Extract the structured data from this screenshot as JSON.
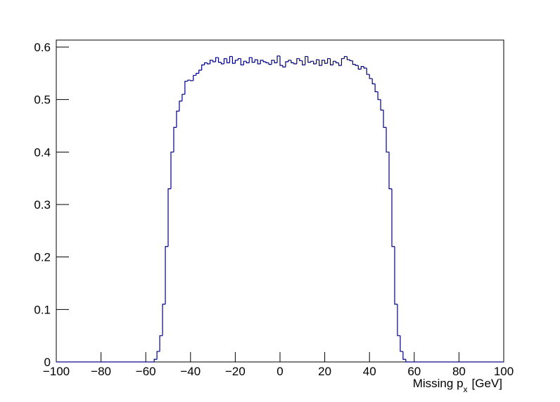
{
  "chart_data": {
    "type": "histogram",
    "x_label": "Missing p",
    "x_label_subscript": "x",
    "x_label_unit": "[GeV]",
    "color": "#000080",
    "xlim": [
      -100,
      100
    ],
    "ylim": [
      0,
      0.6134
    ],
    "xticks": [
      {
        "value": -100,
        "label": "−100"
      },
      {
        "value": -80,
        "label": "−80"
      },
      {
        "value": -60,
        "label": "−60"
      },
      {
        "value": -40,
        "label": "−40"
      },
      {
        "value": -20,
        "label": "−20"
      },
      0,
      20,
      40,
      60,
      80,
      100
    ],
    "yticks": [
      0,
      0.1,
      0.2,
      0.3,
      0.4,
      0.5,
      0.6
    ],
    "bins": [
      -100,
      -98.75,
      -97.5,
      -96.25,
      -95,
      -93.75,
      -92.5,
      -91.25,
      -90,
      -88.75,
      -87.5,
      -86.25,
      -85,
      -83.75,
      -82.5,
      -81.25,
      -80,
      -78.75,
      -77.5,
      -76.25,
      -75,
      -73.75,
      -72.5,
      -71.25,
      -70,
      -68.75,
      -67.5,
      -66.25,
      -65,
      -63.75,
      -62.5,
      -61.25,
      -60,
      -58.75,
      -57.5,
      -56.25,
      -55,
      -53.75,
      -52.5,
      -51.25,
      -50,
      -48.75,
      -47.5,
      -46.25,
      -45,
      -43.75,
      -42.5,
      -41.25,
      -40,
      -38.75,
      -37.5,
      -36.25,
      -35,
      -33.75,
      -32.5,
      -31.25,
      -30,
      -28.75,
      -27.5,
      -26.25,
      -25,
      -23.75,
      -22.5,
      -21.25,
      -20,
      -18.75,
      -17.5,
      -16.25,
      -15,
      -13.75,
      -12.5,
      -11.25,
      -10,
      -8.75,
      -7.5,
      -6.25,
      -5,
      -3.75,
      -2.5,
      -1.25,
      0,
      1.25,
      2.5,
      3.75,
      5,
      6.25,
      7.5,
      8.75,
      10,
      11.25,
      12.5,
      13.75,
      15,
      16.25,
      17.5,
      18.75,
      20,
      21.25,
      22.5,
      23.75,
      25,
      26.25,
      27.5,
      28.75,
      30,
      31.25,
      32.5,
      33.75,
      35,
      36.25,
      37.5,
      38.75,
      40,
      41.25,
      42.5,
      43.75,
      45,
      46.25,
      47.5,
      48.75,
      50,
      51.25,
      52.5,
      53.75,
      55,
      56.25,
      57.5,
      58.75,
      60,
      61.25,
      62.5,
      63.75,
      65,
      66.25,
      67.5,
      68.75,
      70,
      71.25,
      72.5,
      73.75,
      75,
      76.25,
      77.5,
      78.75,
      80,
      81.25,
      82.5,
      83.75,
      85,
      86.25,
      87.5,
      88.75,
      90,
      91.25,
      92.5,
      93.75,
      95,
      96.25,
      97.5,
      98.75,
      100
    ],
    "values": [
      0,
      0,
      0,
      0,
      0,
      0,
      0,
      0,
      0,
      0,
      0,
      0,
      0,
      0,
      0,
      0,
      0,
      0,
      0,
      0,
      0,
      0,
      0,
      0,
      0,
      0,
      0,
      0,
      0,
      0,
      0,
      0,
      0,
      0,
      0,
      0.005,
      0.02,
      0.05,
      0.11,
      0.22,
      0.33,
      0.4,
      0.447,
      0.478,
      0.497,
      0.51,
      0.535,
      0.537,
      0.536,
      0.546,
      0.55,
      0.556,
      0.566,
      0.57,
      0.568,
      0.575,
      0.572,
      0.58,
      0.571,
      0.568,
      0.578,
      0.57,
      0.582,
      0.569,
      0.575,
      0.578,
      0.566,
      0.573,
      0.57,
      0.58,
      0.571,
      0.576,
      0.568,
      0.575,
      0.572,
      0.57,
      0.567,
      0.575,
      0.57,
      0.583,
      0.565,
      0.562,
      0.572,
      0.575,
      0.57,
      0.568,
      0.578,
      0.574,
      0.566,
      0.582,
      0.571,
      0.573,
      0.568,
      0.576,
      0.565,
      0.575,
      0.569,
      0.578,
      0.566,
      0.573,
      0.57,
      0.565,
      0.578,
      0.582,
      0.576,
      0.574,
      0.567,
      0.565,
      0.558,
      0.563,
      0.56,
      0.548,
      0.54,
      0.53,
      0.515,
      0.5,
      0.48,
      0.447,
      0.4,
      0.33,
      0.22,
      0.11,
      0.05,
      0.02,
      0.005,
      0,
      0,
      0,
      0,
      0,
      0,
      0,
      0,
      0,
      0,
      0,
      0,
      0,
      0,
      0,
      0,
      0,
      0,
      0,
      0,
      0,
      0,
      0,
      0,
      0,
      0,
      0,
      0,
      0,
      0,
      0,
      0,
      0,
      0,
      0
    ]
  }
}
